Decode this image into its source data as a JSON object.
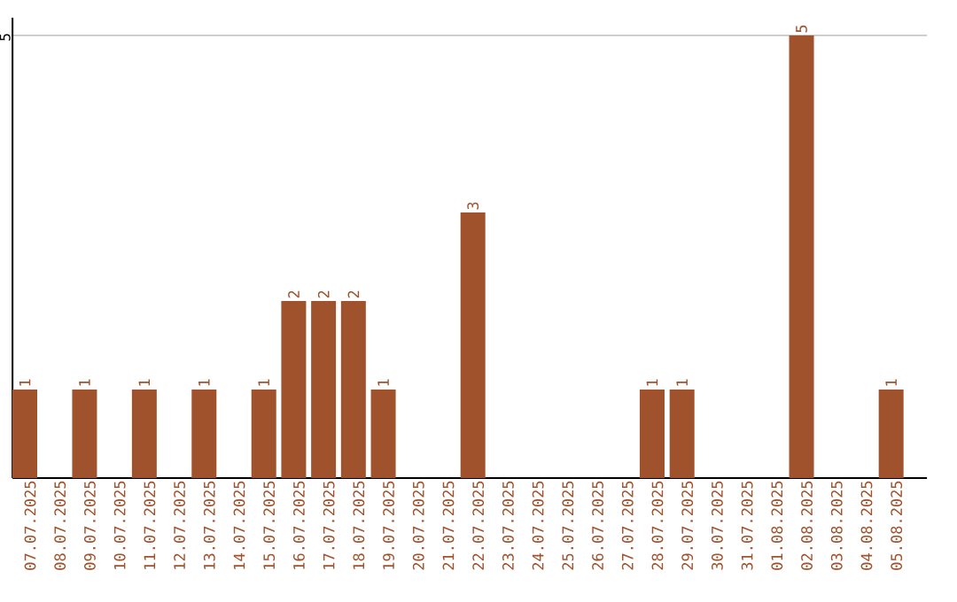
{
  "chart_data": {
    "type": "bar",
    "color": "#a0522d",
    "categories": [
      "07.07.2025",
      "08.07.2025",
      "09.07.2025",
      "10.07.2025",
      "11.07.2025",
      "12.07.2025",
      "13.07.2025",
      "14.07.2025",
      "15.07.2025",
      "16.07.2025",
      "17.07.2025",
      "18.07.2025",
      "19.07.2025",
      "20.07.2025",
      "21.07.2025",
      "22.07.2025",
      "23.07.2025",
      "24.07.2025",
      "25.07.2025",
      "26.07.2025",
      "27.07.2025",
      "28.07.2025",
      "29.07.2025",
      "30.07.2025",
      "31.07.2025",
      "01.08.2025",
      "02.08.2025",
      "03.08.2025",
      "04.08.2025",
      "05.08.2025"
    ],
    "values": [
      1,
      0,
      1,
      0,
      1,
      0,
      1,
      0,
      1,
      2,
      2,
      2,
      1,
      0,
      0,
      3,
      0,
      0,
      0,
      0,
      0,
      1,
      1,
      0,
      0,
      0,
      5,
      0,
      0,
      1
    ],
    "value_labels": [
      "1",
      null,
      "1",
      null,
      "1",
      null,
      "1",
      null,
      "1",
      "2",
      "2",
      "2",
      "1",
      null,
      null,
      "3",
      null,
      null,
      null,
      null,
      null,
      "1",
      "1",
      null,
      null,
      null,
      "5",
      null,
      null,
      "1"
    ],
    "ylim": [
      0,
      5.2
    ],
    "yticks": [
      5
    ],
    "grid": "y"
  }
}
